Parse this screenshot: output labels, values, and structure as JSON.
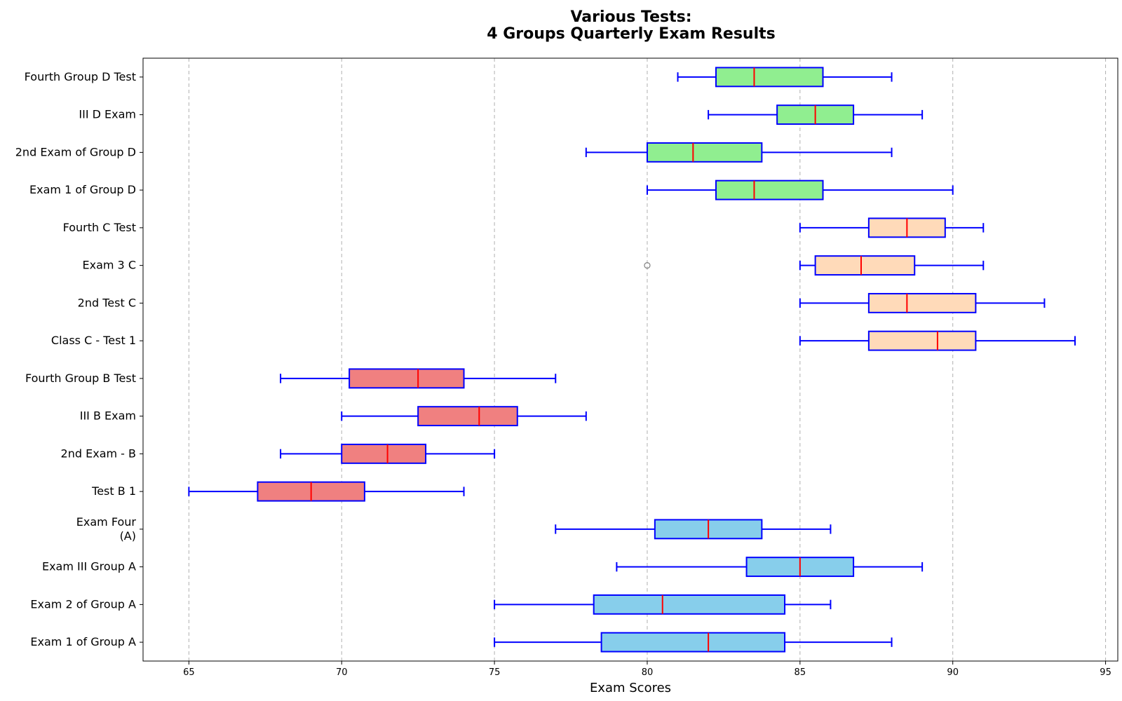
{
  "chart_data": {
    "type": "boxplot",
    "orientation": "horizontal",
    "title_lines": [
      "Various Tests:",
      "4 Groups Quarterly Exam Results"
    ],
    "xlabel": "Exam Scores",
    "ylabel": "",
    "xlim": [
      63.5,
      95.4
    ],
    "xticks": [
      65,
      70,
      75,
      80,
      85,
      90,
      95
    ],
    "grid": "x-dashed",
    "colors": {
      "box_edge": "#0000ff",
      "whisker": "#0000ff",
      "median": "#ff0000",
      "outlier": "#808080",
      "group_A": "#87ceeb",
      "group_B": "#f08080",
      "group_C": "#ffdab9",
      "group_D": "#90ee90"
    },
    "series": [
      {
        "label": "Exam 1 of Group A",
        "group": "A",
        "min": 75,
        "q1": 78.5,
        "median": 82,
        "q3": 84.5,
        "max": 88,
        "outliers": []
      },
      {
        "label": "Exam 2 of Group A",
        "group": "A",
        "min": 75,
        "q1": 78.25,
        "median": 80.5,
        "q3": 84.5,
        "max": 86,
        "outliers": []
      },
      {
        "label": "Exam III Group A",
        "group": "A",
        "min": 79,
        "q1": 83.25,
        "median": 85,
        "q3": 86.75,
        "max": 89,
        "outliers": []
      },
      {
        "label": "Exam Four\n(A)",
        "group": "A",
        "min": 77,
        "q1": 80.25,
        "median": 82,
        "q3": 83.75,
        "max": 86,
        "outliers": []
      },
      {
        "label": "Test B 1",
        "group": "B",
        "min": 65,
        "q1": 67.25,
        "median": 69,
        "q3": 70.75,
        "max": 74,
        "outliers": []
      },
      {
        "label": "2nd Exam - B",
        "group": "B",
        "min": 68,
        "q1": 70,
        "median": 71.5,
        "q3": 72.75,
        "max": 75,
        "outliers": []
      },
      {
        "label": "III B Exam",
        "group": "B",
        "min": 70,
        "q1": 72.5,
        "median": 74.5,
        "q3": 75.75,
        "max": 78,
        "outliers": []
      },
      {
        "label": "Fourth Group B Test",
        "group": "B",
        "min": 68,
        "q1": 70.25,
        "median": 72.5,
        "q3": 74,
        "max": 77,
        "outliers": []
      },
      {
        "label": "Class C - Test 1",
        "group": "C",
        "min": 85,
        "q1": 87.25,
        "median": 89.5,
        "q3": 90.75,
        "max": 94,
        "outliers": []
      },
      {
        "label": "2nd Test C",
        "group": "C",
        "min": 85,
        "q1": 87.25,
        "median": 88.5,
        "q3": 90.75,
        "max": 93,
        "outliers": []
      },
      {
        "label": "Exam 3 C",
        "group": "C",
        "min": 85,
        "q1": 85.5,
        "median": 87,
        "q3": 88.75,
        "max": 91,
        "outliers": [
          80
        ]
      },
      {
        "label": "Fourth C Test",
        "group": "C",
        "min": 85,
        "q1": 87.25,
        "median": 88.5,
        "q3": 89.75,
        "max": 91,
        "outliers": []
      },
      {
        "label": "Exam 1 of Group D",
        "group": "D",
        "min": 80,
        "q1": 82.25,
        "median": 83.5,
        "q3": 85.75,
        "max": 90,
        "outliers": []
      },
      {
        "label": "2nd Exam of Group D",
        "group": "D",
        "min": 78,
        "q1": 80,
        "median": 81.5,
        "q3": 83.75,
        "max": 88,
        "outliers": []
      },
      {
        "label": "III D Exam",
        "group": "D",
        "min": 82,
        "q1": 84.25,
        "median": 85.5,
        "q3": 86.75,
        "max": 89,
        "outliers": []
      },
      {
        "label": "Fourth Group D Test",
        "group": "D",
        "min": 81,
        "q1": 82.25,
        "median": 83.5,
        "q3": 85.75,
        "max": 88,
        "outliers": []
      }
    ]
  }
}
